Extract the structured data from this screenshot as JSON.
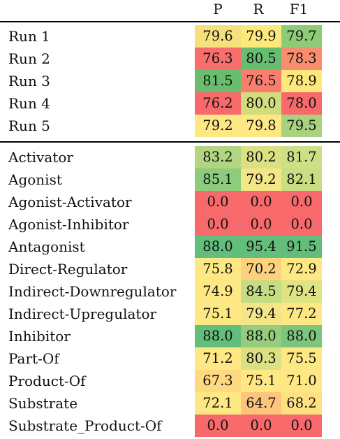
{
  "header": {
    "col_p": "P",
    "col_r": "R",
    "col_f1": "F1"
  },
  "section1": [
    {
      "label": "Run 1",
      "p": "79.6",
      "r": "79.9",
      "f1": "79.7",
      "pc": "#f6e07e",
      "rc": "#fde87c",
      "fc": "#8ecb76"
    },
    {
      "label": "Run 2",
      "p": "76.3",
      "r": "80.5",
      "f1": "78.3",
      "pc": "#f66f6c",
      "rc": "#67bd6f",
      "fc": "#f88e6f"
    },
    {
      "label": "Run 3",
      "p": "81.5",
      "r": "76.5",
      "f1": "78.9",
      "pc": "#6abd6f",
      "rc": "#f87f6e",
      "fc": "#fde87c"
    },
    {
      "label": "Run 4",
      "p": "76.2",
      "r": "80.0",
      "f1": "78.0",
      "pc": "#f8696b",
      "rc": "#d2dc7d",
      "fc": "#f8696b"
    },
    {
      "label": "Run 5",
      "p": "79.2",
      "r": "79.8",
      "f1": "79.5",
      "pc": "#fee884",
      "rc": "#fee884",
      "fc": "#a8d27d"
    }
  ],
  "section2": [
    {
      "label": "Activator",
      "p": "83.2",
      "r": "80.2",
      "f1": "81.7",
      "pc": "#b1d580",
      "rc": "#dce083",
      "fc": "#cde085"
    },
    {
      "label": "Agonist",
      "p": "85.1",
      "r": "79.2",
      "f1": "82.1",
      "pc": "#8dcb7d",
      "rc": "#f3e687",
      "fc": "#c9dd82"
    },
    {
      "label": "Agonist-Activator",
      "p": "0.0",
      "r": "0.0",
      "f1": "0.0",
      "pc": "#f8696b",
      "rc": "#f8696b",
      "fc": "#f8696b"
    },
    {
      "label": "Agonist-Inhibitor",
      "p": "0.0",
      "r": "0.0",
      "f1": "0.0",
      "pc": "#f8696b",
      "rc": "#f8696b",
      "fc": "#f8696b"
    },
    {
      "label": "Antagonist",
      "p": "88.0",
      "r": "95.4",
      "f1": "91.5",
      "pc": "#63be7b",
      "rc": "#63be7b",
      "fc": "#63be7b"
    },
    {
      "label": "Direct-Regulator",
      "p": "75.8",
      "r": "70.2",
      "f1": "72.9",
      "pc": "#fee884",
      "rc": "#fdd27f",
      "fc": "#fee884"
    },
    {
      "label": "Indirect-Downregulator",
      "p": "74.9",
      "r": "84.5",
      "f1": "79.4",
      "pc": "#fee884",
      "rc": "#c5dc82",
      "fc": "#dee383"
    },
    {
      "label": "Indirect-Upregulator",
      "p": "75.1",
      "r": "79.4",
      "f1": "77.2",
      "pc": "#fee884",
      "rc": "#f4e686",
      "fc": "#fee884"
    },
    {
      "label": "Inhibitor",
      "p": "88.0",
      "r": "88.0",
      "f1": "88.0",
      "pc": "#63be7b",
      "rc": "#95cc7e",
      "fc": "#7cc57c"
    },
    {
      "label": "Part-Of",
      "p": "71.2",
      "r": "80.3",
      "f1": "75.5",
      "pc": "#fee884",
      "rc": "#dce083",
      "fc": "#fee884"
    },
    {
      "label": "Product-Of",
      "p": "67.3",
      "r": "75.1",
      "f1": "71.0",
      "pc": "#fed980",
      "rc": "#fee884",
      "fc": "#fee884"
    },
    {
      "label": "Substrate",
      "p": "72.1",
      "r": "64.7",
      "f1": "68.2",
      "pc": "#fee884",
      "rc": "#fdc57c",
      "fc": "#fee282"
    },
    {
      "label": "Substrate_Product-Of",
      "p": "0.0",
      "r": "0.0",
      "f1": "0.0",
      "pc": "#f8696b",
      "rc": "#f8696b",
      "fc": "#f8696b"
    }
  ]
}
